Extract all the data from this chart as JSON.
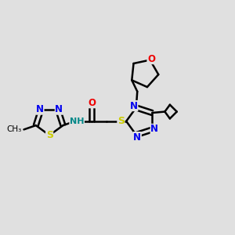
{
  "background_color": "#e0e0e0",
  "bond_color": "#000000",
  "bond_width": 1.8,
  "atom_colors": {
    "N": "#0000ee",
    "O": "#ee0000",
    "S": "#cccc00",
    "C": "#000000",
    "H": "#008888"
  },
  "font_size_atom": 8.5,
  "font_size_small": 7.5,
  "figsize": [
    3.0,
    3.0
  ],
  "dpi": 100
}
